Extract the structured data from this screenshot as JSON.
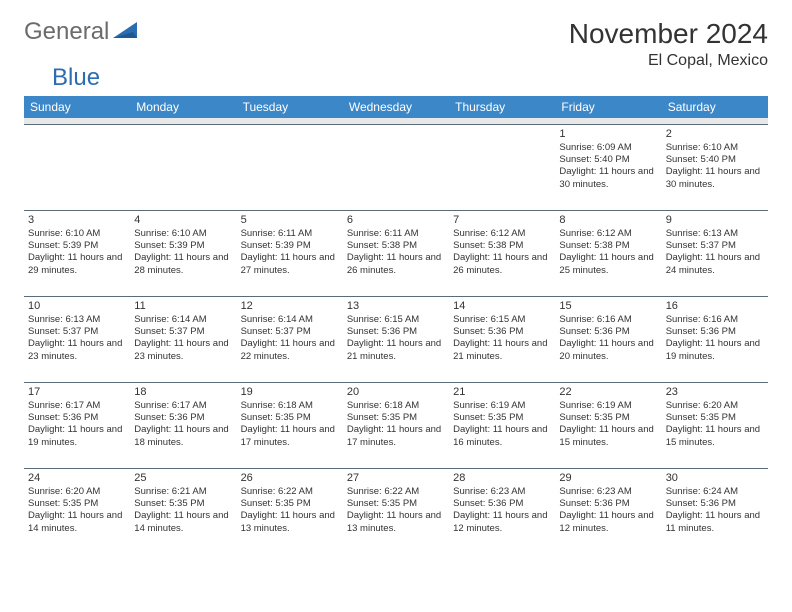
{
  "brand": {
    "text_general": "General",
    "text_blue": "Blue",
    "logo_color": "#2b6db0",
    "gray_color": "#6b6b6b"
  },
  "title": "November 2024",
  "location": "El Copal, Mexico",
  "header_bg": "#3b87c8",
  "header_fg": "#ffffff",
  "border_color": "#5a6b7a",
  "spacer_bg": "#e8e8e8",
  "text_color": "#333333",
  "days_of_week": [
    "Sunday",
    "Monday",
    "Tuesday",
    "Wednesday",
    "Thursday",
    "Friday",
    "Saturday"
  ],
  "weeks": [
    [
      null,
      null,
      null,
      null,
      null,
      {
        "n": "1",
        "sunrise": "6:09 AM",
        "sunset": "5:40 PM",
        "daylight": "11 hours and 30 minutes."
      },
      {
        "n": "2",
        "sunrise": "6:10 AM",
        "sunset": "5:40 PM",
        "daylight": "11 hours and 30 minutes."
      }
    ],
    [
      {
        "n": "3",
        "sunrise": "6:10 AM",
        "sunset": "5:39 PM",
        "daylight": "11 hours and 29 minutes."
      },
      {
        "n": "4",
        "sunrise": "6:10 AM",
        "sunset": "5:39 PM",
        "daylight": "11 hours and 28 minutes."
      },
      {
        "n": "5",
        "sunrise": "6:11 AM",
        "sunset": "5:39 PM",
        "daylight": "11 hours and 27 minutes."
      },
      {
        "n": "6",
        "sunrise": "6:11 AM",
        "sunset": "5:38 PM",
        "daylight": "11 hours and 26 minutes."
      },
      {
        "n": "7",
        "sunrise": "6:12 AM",
        "sunset": "5:38 PM",
        "daylight": "11 hours and 26 minutes."
      },
      {
        "n": "8",
        "sunrise": "6:12 AM",
        "sunset": "5:38 PM",
        "daylight": "11 hours and 25 minutes."
      },
      {
        "n": "9",
        "sunrise": "6:13 AM",
        "sunset": "5:37 PM",
        "daylight": "11 hours and 24 minutes."
      }
    ],
    [
      {
        "n": "10",
        "sunrise": "6:13 AM",
        "sunset": "5:37 PM",
        "daylight": "11 hours and 23 minutes."
      },
      {
        "n": "11",
        "sunrise": "6:14 AM",
        "sunset": "5:37 PM",
        "daylight": "11 hours and 23 minutes."
      },
      {
        "n": "12",
        "sunrise": "6:14 AM",
        "sunset": "5:37 PM",
        "daylight": "11 hours and 22 minutes."
      },
      {
        "n": "13",
        "sunrise": "6:15 AM",
        "sunset": "5:36 PM",
        "daylight": "11 hours and 21 minutes."
      },
      {
        "n": "14",
        "sunrise": "6:15 AM",
        "sunset": "5:36 PM",
        "daylight": "11 hours and 21 minutes."
      },
      {
        "n": "15",
        "sunrise": "6:16 AM",
        "sunset": "5:36 PM",
        "daylight": "11 hours and 20 minutes."
      },
      {
        "n": "16",
        "sunrise": "6:16 AM",
        "sunset": "5:36 PM",
        "daylight": "11 hours and 19 minutes."
      }
    ],
    [
      {
        "n": "17",
        "sunrise": "6:17 AM",
        "sunset": "5:36 PM",
        "daylight": "11 hours and 19 minutes."
      },
      {
        "n": "18",
        "sunrise": "6:17 AM",
        "sunset": "5:36 PM",
        "daylight": "11 hours and 18 minutes."
      },
      {
        "n": "19",
        "sunrise": "6:18 AM",
        "sunset": "5:35 PM",
        "daylight": "11 hours and 17 minutes."
      },
      {
        "n": "20",
        "sunrise": "6:18 AM",
        "sunset": "5:35 PM",
        "daylight": "11 hours and 17 minutes."
      },
      {
        "n": "21",
        "sunrise": "6:19 AM",
        "sunset": "5:35 PM",
        "daylight": "11 hours and 16 minutes."
      },
      {
        "n": "22",
        "sunrise": "6:19 AM",
        "sunset": "5:35 PM",
        "daylight": "11 hours and 15 minutes."
      },
      {
        "n": "23",
        "sunrise": "6:20 AM",
        "sunset": "5:35 PM",
        "daylight": "11 hours and 15 minutes."
      }
    ],
    [
      {
        "n": "24",
        "sunrise": "6:20 AM",
        "sunset": "5:35 PM",
        "daylight": "11 hours and 14 minutes."
      },
      {
        "n": "25",
        "sunrise": "6:21 AM",
        "sunset": "5:35 PM",
        "daylight": "11 hours and 14 minutes."
      },
      {
        "n": "26",
        "sunrise": "6:22 AM",
        "sunset": "5:35 PM",
        "daylight": "11 hours and 13 minutes."
      },
      {
        "n": "27",
        "sunrise": "6:22 AM",
        "sunset": "5:35 PM",
        "daylight": "11 hours and 13 minutes."
      },
      {
        "n": "28",
        "sunrise": "6:23 AM",
        "sunset": "5:36 PM",
        "daylight": "11 hours and 12 minutes."
      },
      {
        "n": "29",
        "sunrise": "6:23 AM",
        "sunset": "5:36 PM",
        "daylight": "11 hours and 12 minutes."
      },
      {
        "n": "30",
        "sunrise": "6:24 AM",
        "sunset": "5:36 PM",
        "daylight": "11 hours and 11 minutes."
      }
    ]
  ],
  "labels": {
    "sunrise_prefix": "Sunrise: ",
    "sunset_prefix": "Sunset: ",
    "daylight_prefix": "Daylight: "
  }
}
